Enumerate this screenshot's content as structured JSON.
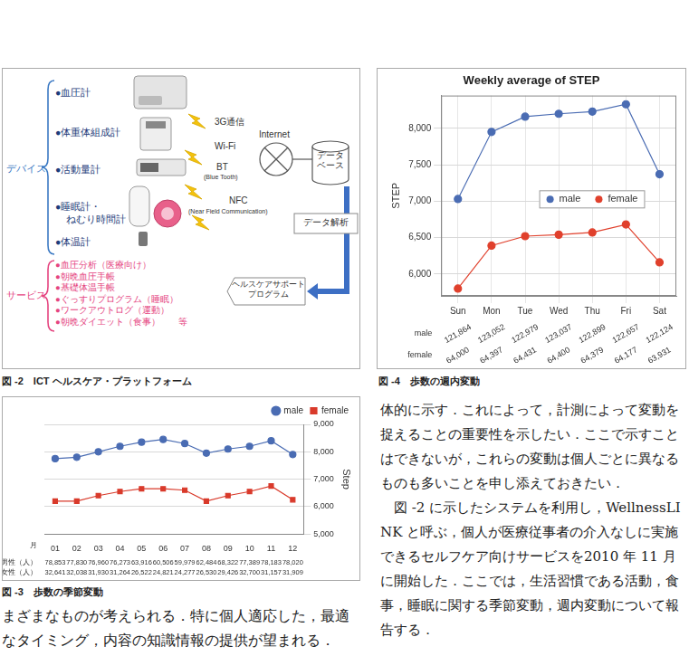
{
  "figure2": {
    "caption": "図 -2　ICT ヘルスケア・プラットフォーム",
    "devices": {
      "label": "デバイス",
      "items": [
        [
          "●血圧計"
        ],
        [
          "●体重体組成計"
        ],
        [
          "●活動量計"
        ],
        [
          "●睡眠計・",
          "ねむり時間計"
        ],
        [
          "●体温計"
        ]
      ]
    },
    "links": [
      {
        "label": "3G通信"
      },
      {
        "label": "Wi-Fi"
      },
      {
        "label": "BT",
        "note": "(Blue Tooth)"
      },
      {
        "label": "NFC",
        "note": "(Near Field Communication)"
      }
    ],
    "internet": "Internet",
    "database": [
      "データ",
      "ベース"
    ],
    "analysis": "データ解析",
    "program": [
      "ヘルスケアサポート",
      "プログラム"
    ],
    "services": {
      "label": "サービス",
      "items": [
        "●血圧分析（医療向け）",
        "●朝晩血圧手帳",
        "●基礎体温手帳",
        "●ぐっすりプログラム（睡眠）",
        "●ワークアウトログ（運動）",
        "●朝晩ダイエット（食事）　　等"
      ]
    }
  },
  "chart_data": [
    {
      "type": "line",
      "caption": "図 -3　歩数の季節変動",
      "x_label": "月",
      "categories": [
        "01",
        "02",
        "03",
        "04",
        "05",
        "06",
        "07",
        "08",
        "09",
        "10",
        "11",
        "12"
      ],
      "series": [
        {
          "name": "male",
          "color": "#4a6cb3",
          "marker": "circle",
          "values": [
            7750,
            7800,
            8000,
            8200,
            8350,
            8450,
            8300,
            7950,
            8100,
            8200,
            8400,
            7900
          ]
        },
        {
          "name": "female",
          "color": "#d93a2b",
          "marker": "square",
          "values": [
            6200,
            6200,
            6400,
            6550,
            6650,
            6650,
            6600,
            6200,
            6400,
            6550,
            6750,
            6250
          ]
        }
      ],
      "y_label": "Step",
      "ylim": [
        5000,
        9000
      ],
      "yticks": [
        {
          "value": 5000,
          "label": "5,000"
        },
        {
          "value": 6000,
          "label": "6,000"
        },
        {
          "value": 7000,
          "label": "7,000"
        },
        {
          "value": 8000,
          "label": "8,000"
        },
        {
          "value": 9000,
          "label": "9,000"
        }
      ],
      "grid": true,
      "legend": "top-right",
      "table": [
        {
          "name": "男性（人）",
          "values": [
            "78,853",
            "77,830",
            "76,960",
            "76,273",
            "63,916",
            "60,506",
            "59,979",
            "62,484",
            "68,322",
            "77,389",
            "78,183",
            "78,020"
          ]
        },
        {
          "name": "女性（人）",
          "values": [
            "32,641",
            "32,038",
            "31,930",
            "31,264",
            "26,522",
            "24,821",
            "24,277",
            "26,530",
            "29,426",
            "32,700",
            "31,157",
            "31,909"
          ]
        }
      ]
    },
    {
      "type": "line",
      "caption": "図 -4　歩数の週内変動",
      "title": "Weekly average of STEP",
      "categories": [
        "Sun",
        "Mon",
        "Tue",
        "Wed",
        "Thu",
        "Fri",
        "Sat"
      ],
      "series": [
        {
          "name": "male",
          "color": "#4a6cb3",
          "marker": "circle",
          "values": [
            7030,
            7950,
            8160,
            8200,
            8230,
            8330,
            7370
          ]
        },
        {
          "name": "female",
          "color": "#e0402c",
          "marker": "circle",
          "values": [
            5800,
            6390,
            6520,
            6540,
            6570,
            6680,
            6160
          ]
        }
      ],
      "y_label": "STEP",
      "ylim": [
        5700,
        8450
      ],
      "yticks": [
        {
          "value": 6000,
          "label": "6,000"
        },
        {
          "value": 6500,
          "label": "6,500"
        },
        {
          "value": 7000,
          "label": "7,000"
        },
        {
          "value": 7500,
          "label": "7,500"
        },
        {
          "value": 8000,
          "label": "8,000"
        }
      ],
      "grid": true,
      "legend": "right",
      "table": [
        {
          "name": "male",
          "values": [
            "121,864",
            "123,052",
            "122,979",
            "123,037",
            "122,899",
            "122,657",
            "122,124"
          ]
        },
        {
          "name": "female",
          "values": [
            "64,000",
            "64,397",
            "64,431",
            "64,400",
            "64,379",
            "64,177",
            "63,931"
          ]
        }
      ]
    }
  ],
  "text": {
    "left": [
      "まざまなものが考えられる．特に個人適応した，最適なタイミング，内容の知識情報の提供が望まれる．"
    ],
    "right": [
      "体的に示す．これによって，計測によって変動を捉えることの重要性を示したい．ここで示すことはできないが，これらの変動は個人ごとに異なるものも多いことを申し添えておきたい．",
      "図 -2 に示したシステムを利用し，WellnessLINK と呼ぶ，個人が医療従事者の介入なしに実施できるセルフケア向けサービスを2010 年 11 月に開始した．ここでは，生活習慣である活動，食事，睡眠に関する季節変動，週内変動について報告する．"
    ]
  }
}
